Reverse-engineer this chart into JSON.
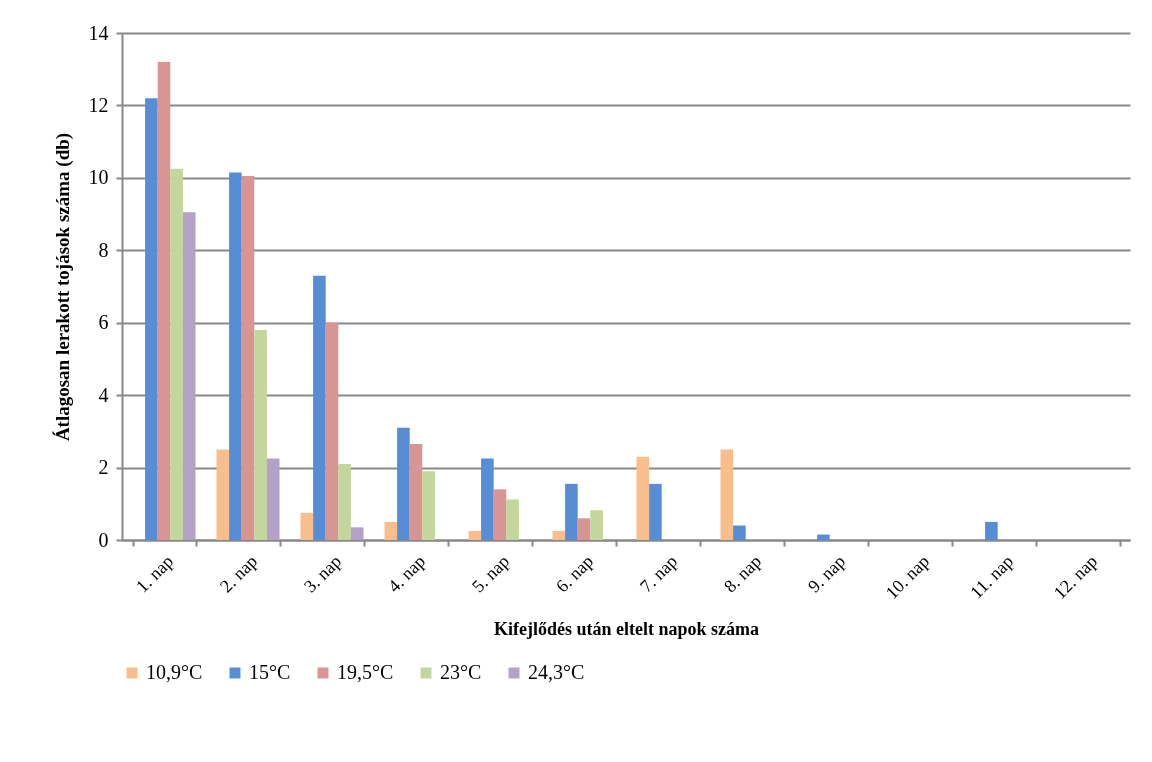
{
  "chart_data": {
    "type": "bar",
    "xlabel": "Kifejlődés után eltelt napok száma",
    "ylabel": "Átlagosan lerakott tojások száma (db)",
    "categories": [
      "1. nap",
      "2. nap",
      "3. nap",
      "4. nap",
      "5. nap",
      "6. nap",
      "7. nap",
      "8. nap",
      "9. nap",
      "10. nap",
      "11. nap",
      "12. nap"
    ],
    "series": [
      {
        "name": "10,9°C",
        "color": "#f9be8c",
        "values": [
          0,
          2.5,
          0.75,
          0.5,
          0.25,
          0.25,
          2.3,
          2.5,
          0,
          0,
          0,
          0
        ]
      },
      {
        "name": "15°C",
        "color": "#558ed5",
        "values": [
          12.2,
          10.15,
          7.3,
          3.1,
          2.25,
          1.55,
          1.55,
          0.4,
          0.15,
          0,
          0.5,
          0
        ]
      },
      {
        "name": "19,5°C",
        "color": "#d99594",
        "values": [
          13.2,
          10.05,
          6.0,
          2.65,
          1.4,
          0.6,
          0,
          0,
          0,
          0,
          0,
          0
        ]
      },
      {
        "name": "23°C",
        "color": "#c3d69b",
        "values": [
          10.25,
          5.8,
          2.1,
          1.9,
          1.12,
          0.82,
          0,
          0,
          0,
          0,
          0,
          0
        ]
      },
      {
        "name": "24,3°C",
        "color": "#b3a2c7",
        "values": [
          9.05,
          2.25,
          0.35,
          0,
          0,
          0,
          0,
          0,
          0,
          0,
          0,
          0
        ]
      }
    ],
    "ylim": [
      0,
      14
    ],
    "yticks": [
      0,
      2,
      4,
      6,
      8,
      10,
      12,
      14
    ],
    "grid": "y",
    "legend": "bottom"
  }
}
